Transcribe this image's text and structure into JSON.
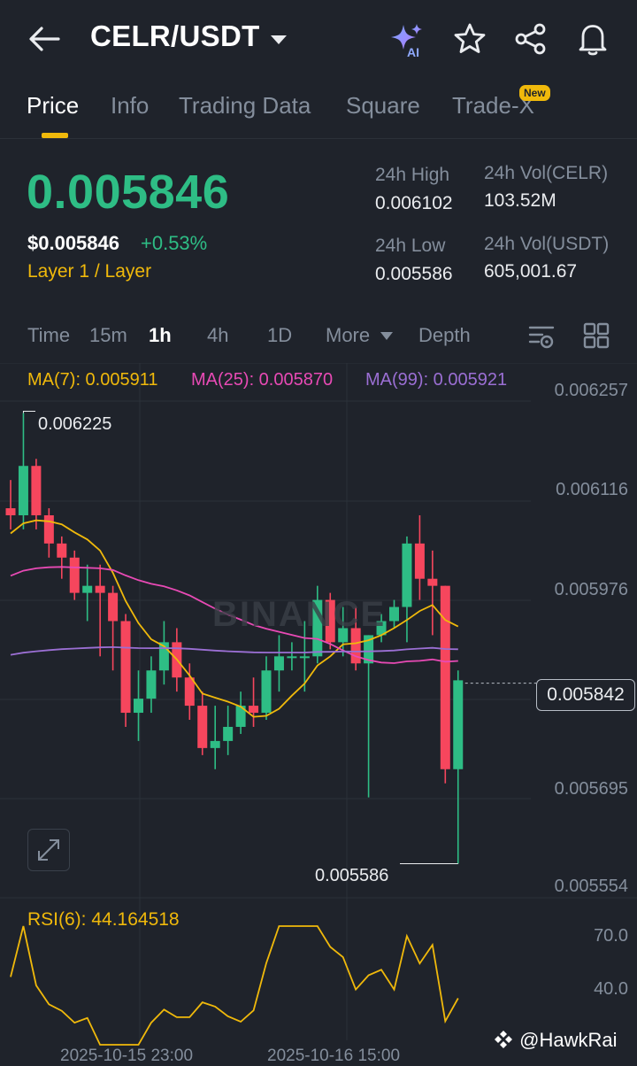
{
  "header": {
    "pair": "CELR/USDT",
    "icons": [
      "back-arrow-icon",
      "caret-down-icon",
      "ai-sparkle-icon",
      "star-icon",
      "share-icon",
      "bell-icon"
    ]
  },
  "tabs": [
    {
      "label": "Price",
      "active": true
    },
    {
      "label": "Info"
    },
    {
      "label": "Trading Data"
    },
    {
      "label": "Square"
    },
    {
      "label": "Trade-X",
      "badge": "New"
    }
  ],
  "price": {
    "last": "0.005846",
    "usd": "$0.005846",
    "change": "+0.53%",
    "category": "Layer 1 / Layer",
    "high_label": "24h High",
    "high": "0.006102",
    "low_label": "24h Low",
    "low": "0.005586",
    "vol_base_label": "24h Vol(CELR)",
    "vol_base": "103.52M",
    "vol_quote_label": "24h Vol(USDT)",
    "vol_quote": "605,001.67"
  },
  "intervals": {
    "items": [
      "Time",
      "15m",
      "1h",
      "4h",
      "1D",
      "More",
      "Depth"
    ],
    "active": "1h"
  },
  "chart": {
    "ma7": "MA(7): 0.005911",
    "ma25": "MA(25): 0.005870",
    "ma99": "MA(99): 0.005921",
    "price_ticks": [
      "0.006257",
      "0.006116",
      "0.005976",
      "0.005842",
      "0.005695",
      "0.005554"
    ],
    "current_price": "0.005842",
    "high_marker": "0.006225",
    "low_marker": "0.005586",
    "watermark_text": "BINANCE",
    "colors": {
      "up": "#2ebd85",
      "down": "#f6465d",
      "ma7": "#f0b90b",
      "ma25": "#e84ab5",
      "ma99": "#9b6fd4"
    }
  },
  "rsi": {
    "label": "RSI(6): 44.164518",
    "ticks": [
      "70.0",
      "40.0"
    ]
  },
  "dates": [
    "2025-10-15 23:00",
    "2025-10-16 15:00"
  ],
  "attribution": "@HawkRai",
  "chart_data": {
    "type": "candlestick",
    "ylim": [
      0.005554,
      0.006257
    ],
    "candles": [
      {
        "o": 0.00609,
        "h": 0.00613,
        "l": 0.00606,
        "c": 0.00608
      },
      {
        "o": 0.00608,
        "h": 0.006225,
        "l": 0.00606,
        "c": 0.00615
      },
      {
        "o": 0.00615,
        "h": 0.00616,
        "l": 0.00606,
        "c": 0.00608
      },
      {
        "o": 0.00608,
        "h": 0.00609,
        "l": 0.00602,
        "c": 0.00604
      },
      {
        "o": 0.00604,
        "h": 0.00605,
        "l": 0.00599,
        "c": 0.00602
      },
      {
        "o": 0.00602,
        "h": 0.00603,
        "l": 0.00596,
        "c": 0.00597
      },
      {
        "o": 0.00597,
        "h": 0.00601,
        "l": 0.00593,
        "c": 0.00598
      },
      {
        "o": 0.00598,
        "h": 0.00601,
        "l": 0.00588,
        "c": 0.00597
      },
      {
        "o": 0.00597,
        "h": 0.00598,
        "l": 0.00586,
        "c": 0.00593
      },
      {
        "o": 0.00593,
        "h": 0.00594,
        "l": 0.00578,
        "c": 0.0058
      },
      {
        "o": 0.0058,
        "h": 0.00586,
        "l": 0.00576,
        "c": 0.00582
      },
      {
        "o": 0.00582,
        "h": 0.00588,
        "l": 0.0058,
        "c": 0.00586
      },
      {
        "o": 0.00586,
        "h": 0.00593,
        "l": 0.00584,
        "c": 0.0059
      },
      {
        "o": 0.0059,
        "h": 0.00592,
        "l": 0.00583,
        "c": 0.00585
      },
      {
        "o": 0.00585,
        "h": 0.00587,
        "l": 0.00579,
        "c": 0.00581
      },
      {
        "o": 0.00581,
        "h": 0.00583,
        "l": 0.00574,
        "c": 0.00575
      },
      {
        "o": 0.00575,
        "h": 0.00581,
        "l": 0.00572,
        "c": 0.00576
      },
      {
        "o": 0.00576,
        "h": 0.00581,
        "l": 0.00574,
        "c": 0.00578
      },
      {
        "o": 0.00578,
        "h": 0.00583,
        "l": 0.00577,
        "c": 0.00581
      },
      {
        "o": 0.00581,
        "h": 0.00585,
        "l": 0.00578,
        "c": 0.0058
      },
      {
        "o": 0.0058,
        "h": 0.00588,
        "l": 0.00579,
        "c": 0.00586
      },
      {
        "o": 0.00586,
        "h": 0.00591,
        "l": 0.00583,
        "c": 0.00588
      },
      {
        "o": 0.00588,
        "h": 0.0059,
        "l": 0.00586,
        "c": 0.00588
      },
      {
        "o": 0.00588,
        "h": 0.00593,
        "l": 0.00583,
        "c": 0.00588
      },
      {
        "o": 0.00588,
        "h": 0.00598,
        "l": 0.00587,
        "c": 0.00596
      },
      {
        "o": 0.00596,
        "h": 0.00597,
        "l": 0.00589,
        "c": 0.0059
      },
      {
        "o": 0.0059,
        "h": 0.00595,
        "l": 0.00588,
        "c": 0.00592
      },
      {
        "o": 0.00592,
        "h": 0.00595,
        "l": 0.00586,
        "c": 0.00587
      },
      {
        "o": 0.00587,
        "h": 0.00591,
        "l": 0.00568,
        "c": 0.00591
      },
      {
        "o": 0.00591,
        "h": 0.00594,
        "l": 0.0059,
        "c": 0.00593
      },
      {
        "o": 0.00593,
        "h": 0.00596,
        "l": 0.00592,
        "c": 0.00595
      },
      {
        "o": 0.00595,
        "h": 0.00605,
        "l": 0.0059,
        "c": 0.00604
      },
      {
        "o": 0.00604,
        "h": 0.00608,
        "l": 0.00596,
        "c": 0.00599
      },
      {
        "o": 0.00599,
        "h": 0.00603,
        "l": 0.00591,
        "c": 0.00598
      },
      {
        "o": 0.00598,
        "h": 0.00598,
        "l": 0.0057,
        "c": 0.00572
      },
      {
        "o": 0.00572,
        "h": 0.00586,
        "l": 0.005586,
        "c": 0.005846
      }
    ],
    "rsi_ylim": [
      15,
      85
    ]
  }
}
